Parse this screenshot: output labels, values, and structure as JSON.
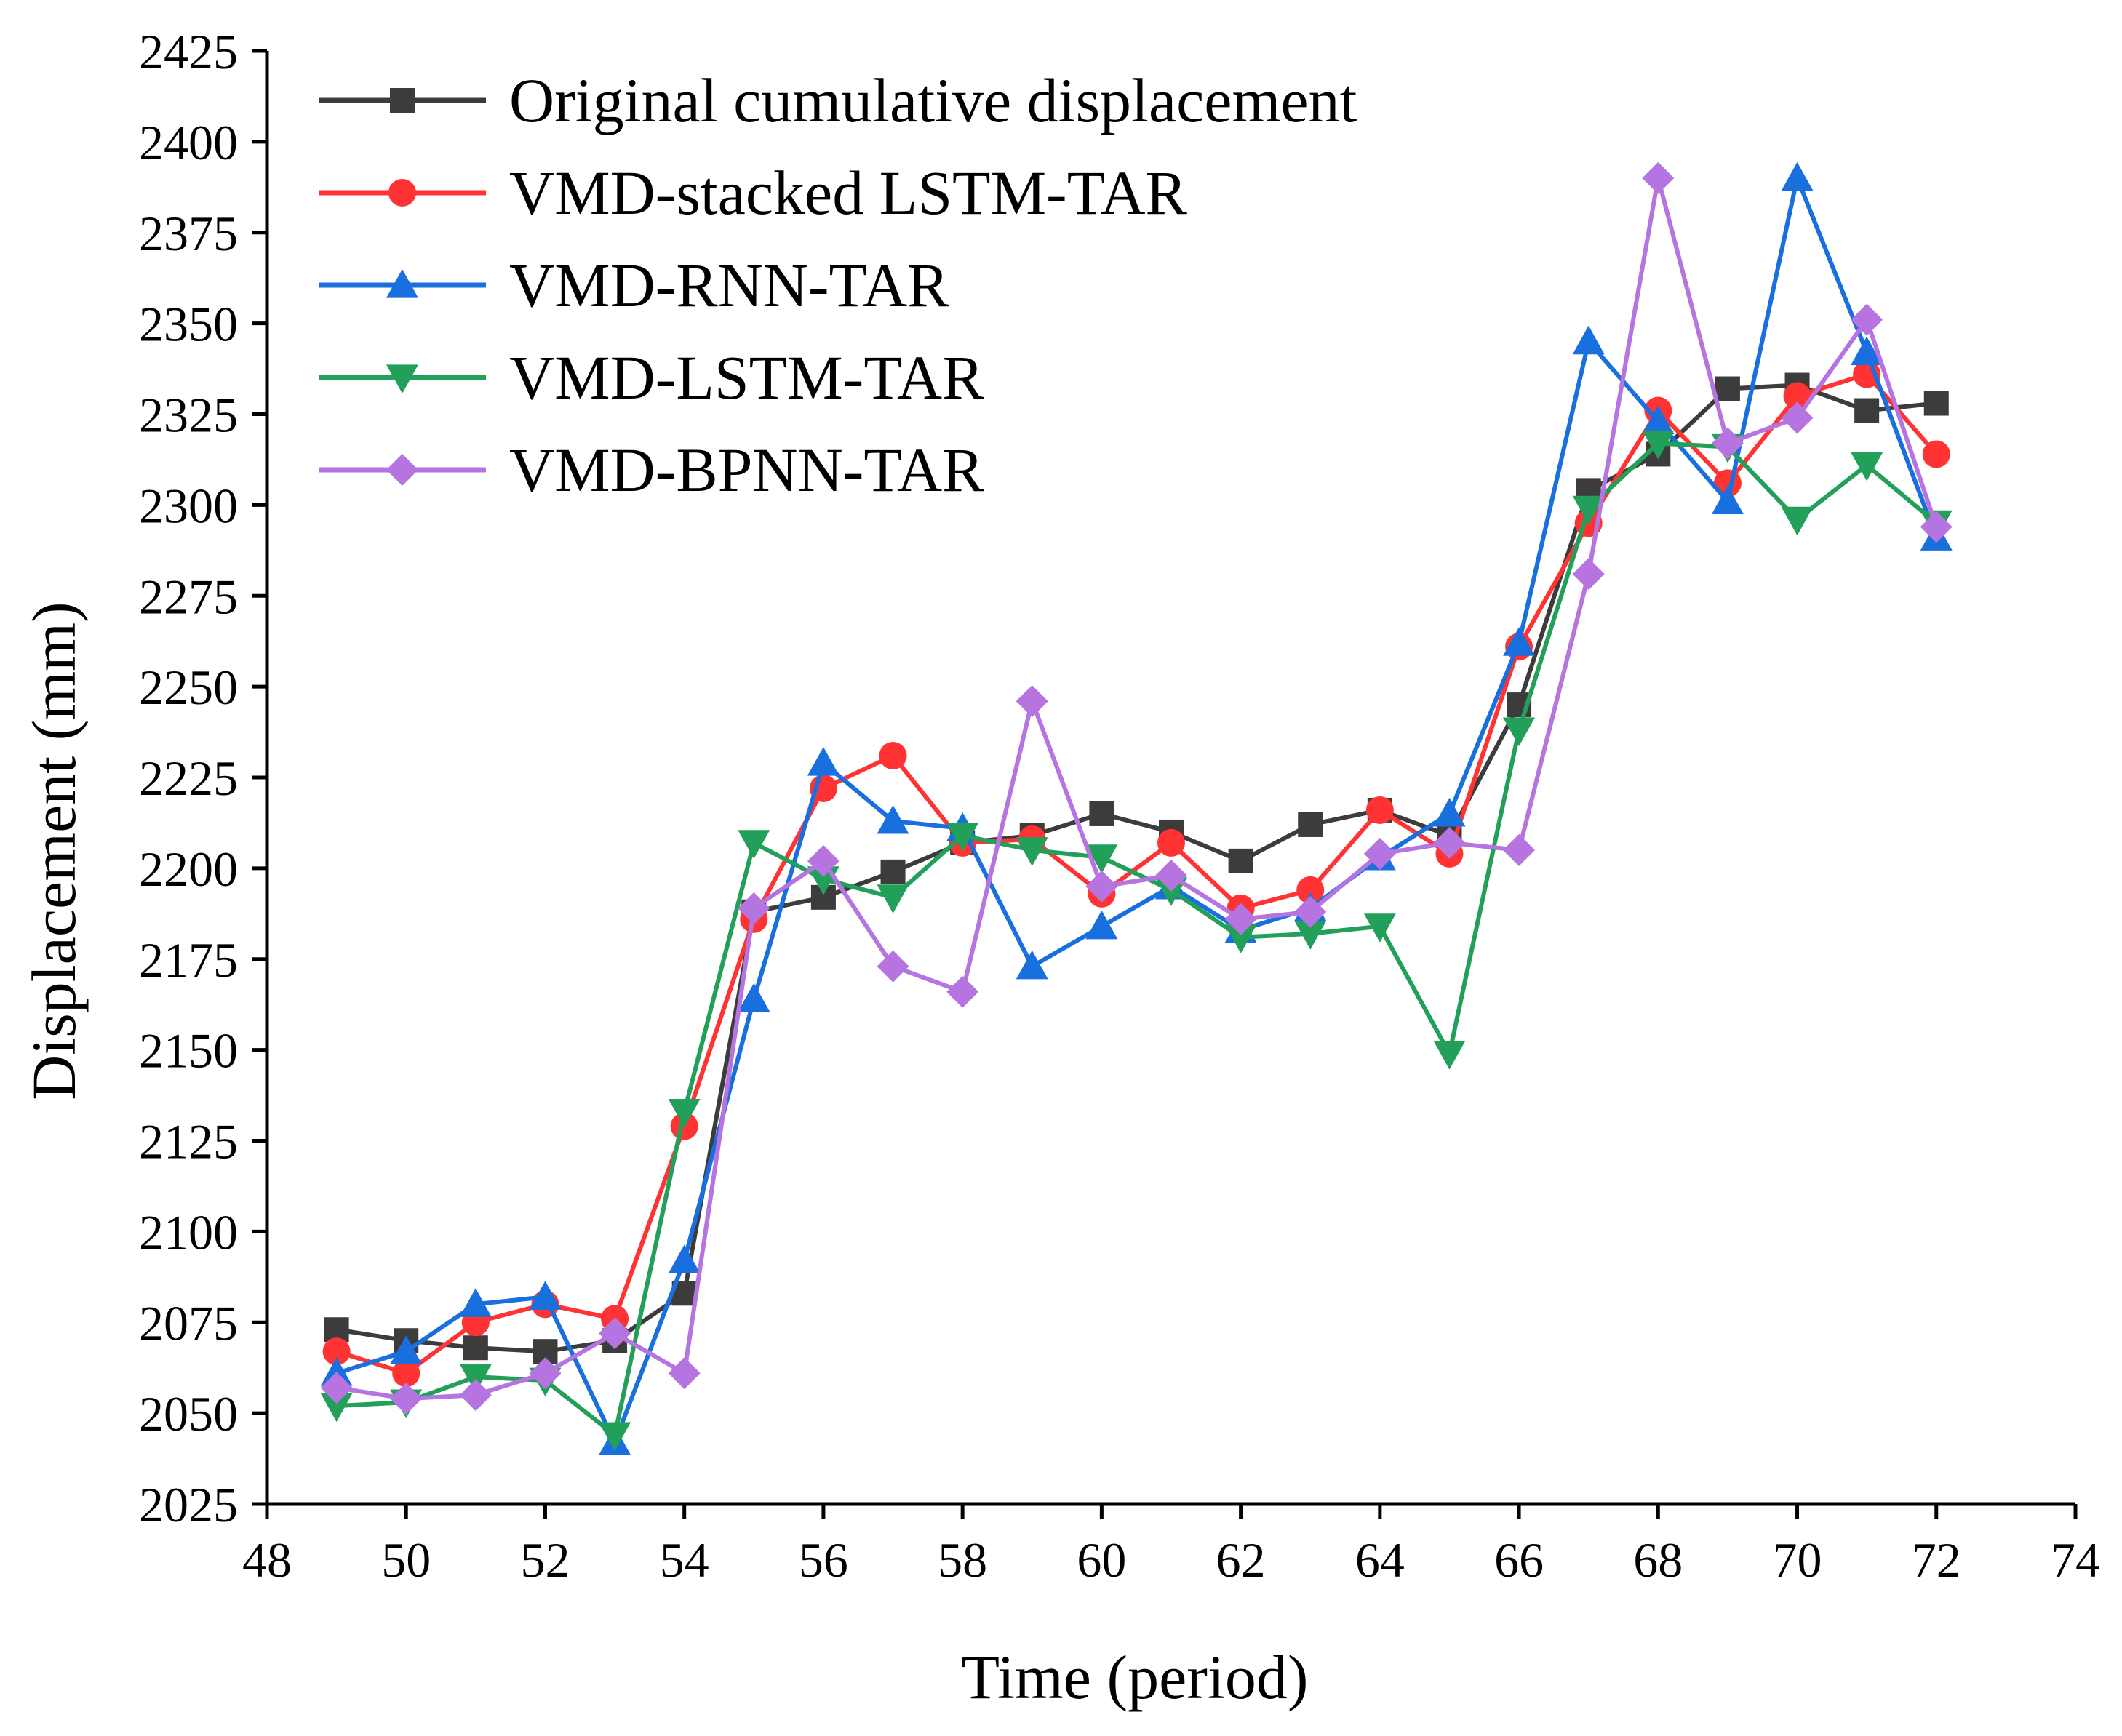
{
  "chart_data": {
    "type": "line",
    "title": "",
    "xlabel": "Time (period)",
    "ylabel": "Displacement (mm)",
    "xlim": [
      48,
      74
    ],
    "ylim": [
      2025,
      2425
    ],
    "xticks": [
      48,
      50,
      52,
      54,
      56,
      58,
      60,
      62,
      64,
      66,
      68,
      70,
      72,
      74
    ],
    "yticks": [
      2025,
      2050,
      2075,
      2100,
      2125,
      2150,
      2175,
      2200,
      2225,
      2250,
      2275,
      2300,
      2325,
      2350,
      2375,
      2400,
      2425
    ],
    "grid": false,
    "legend_position": "top-left",
    "x": [
      49,
      50,
      51,
      52,
      53,
      54,
      55,
      56,
      57,
      58,
      59,
      60,
      61,
      62,
      63,
      64,
      65,
      66,
      67,
      68,
      69,
      70,
      71,
      72
    ],
    "series": [
      {
        "name": "Original cumulative displacement",
        "color": "#3c3c3c",
        "marker": "square",
        "values": [
          2073,
          2070,
          2068,
          2067,
          2070,
          2083,
          2188,
          2192,
          2199,
          2207,
          2209,
          2215,
          2210,
          2202,
          2212,
          2216,
          2209,
          2245,
          2304,
          2314,
          2332,
          2333,
          2326,
          2328
        ]
      },
      {
        "name": "VMD-stacked LSTM-TAR",
        "color": "#ff3333",
        "marker": "circle",
        "values": [
          2067,
          2061,
          2075,
          2080,
          2076,
          2129,
          2186,
          2222,
          2231,
          2207,
          2208,
          2193,
          2207,
          2189,
          2194,
          2216,
          2204,
          2261,
          2295,
          2326,
          2306,
          2330,
          2336,
          2314
        ]
      },
      {
        "name": "VMD-RNN-TAR",
        "color": "#1a6fdf",
        "marker": "triangle-up",
        "values": [
          2061,
          2067,
          2080,
          2082,
          2042,
          2092,
          2164,
          2229,
          2213,
          2211,
          2173,
          2184,
          2195,
          2183,
          2189,
          2203,
          2215,
          2262,
          2345,
          2323,
          2301,
          2390,
          2342,
          2291
        ]
      },
      {
        "name": "VMD-LSTM-TAR",
        "color": "#22a05a",
        "marker": "triangle-down",
        "values": [
          2052,
          2053,
          2060,
          2059,
          2044,
          2133,
          2207,
          2197,
          2192,
          2209,
          2205,
          2203,
          2194,
          2181,
          2182,
          2184,
          2149,
          2238,
          2299,
          2317,
          2316,
          2296,
          2311,
          2295
        ]
      },
      {
        "name": "VMD-BPNN-TAR",
        "color": "#b574e0",
        "marker": "diamond",
        "values": [
          2057,
          2054,
          2055,
          2061,
          2072,
          2061,
          2189,
          2202,
          2173,
          2166,
          2246,
          2195,
          2198,
          2186,
          2188,
          2204,
          2207,
          2205,
          2281,
          2390,
          2317,
          2324,
          2351,
          2294
        ]
      }
    ]
  }
}
